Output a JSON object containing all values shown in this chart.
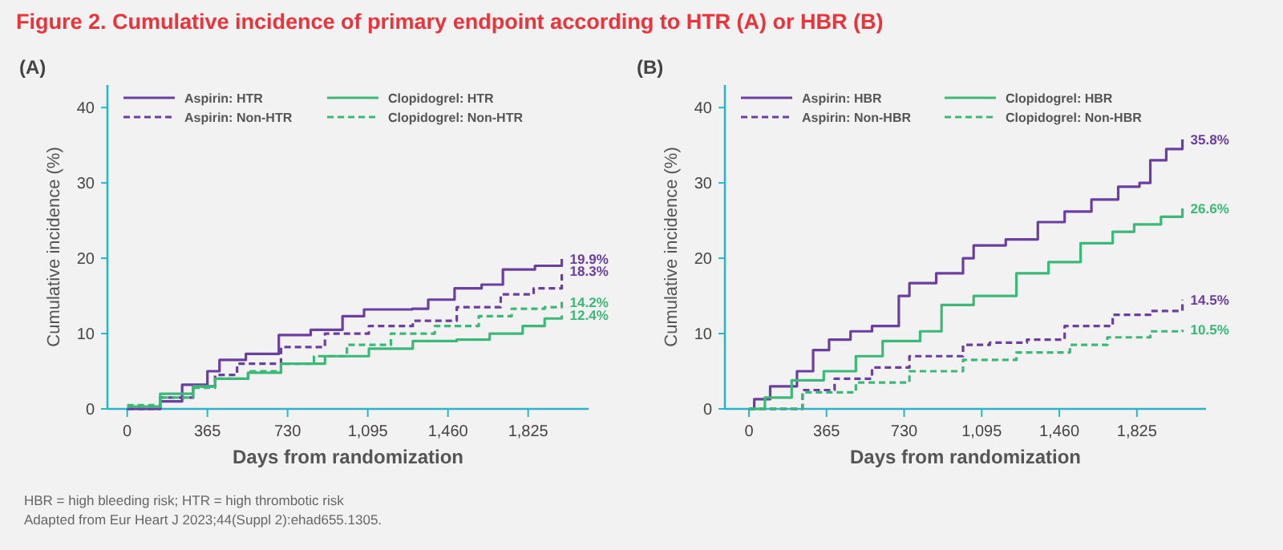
{
  "chart_data": [
    {
      "type": "step",
      "title": "Figure 2. Cumulative incidence of primary endpoint according to HTR (A) or HBR (B)",
      "subtitle": "(A)",
      "xlabel": "Days from randomization",
      "ylabel": "Cumulative incidence (%)",
      "xlim": [
        -90,
        2100
      ],
      "ylim": [
        0,
        43
      ],
      "xticks": [
        0,
        365,
        730,
        {
          "value": 1095,
          "label": "1,095"
        },
        {
          "value": 1460,
          "label": "1,460"
        },
        {
          "value": 1825,
          "label": "1,825"
        }
      ],
      "yticks": [
        0,
        10,
        20,
        30,
        40
      ],
      "grid": false,
      "legend": "top left",
      "series": [
        {
          "name": "Aspirin: HTR",
          "color": "#6b3fa0",
          "line_style": "solid",
          "x": [
            0,
            150,
            250,
            365,
            420,
            540,
            690,
            835,
            980,
            1078,
            1297,
            1370,
            1490,
            1613,
            1710,
            1856,
            1978
          ],
          "values": [
            0,
            1,
            3.2,
            5,
            6.5,
            7.3,
            9.8,
            10.5,
            12.3,
            13.2,
            13.3,
            14.5,
            16,
            16.5,
            18.5,
            19,
            19.9
          ],
          "value_labels": [
            null,
            null,
            null,
            null,
            null,
            null,
            null,
            null,
            null,
            null,
            null,
            null,
            null,
            null,
            null,
            null,
            "19.9%"
          ]
        },
        {
          "name": "Aspirin: Non-HTR",
          "color": "#6b3fa0",
          "line_style": "dashed",
          "x": [
            0,
            150,
            300,
            400,
            500,
            700,
            900,
            1100,
            1300,
            1500,
            1700,
            1850,
            1978
          ],
          "values": [
            0,
            1.5,
            3,
            4.5,
            6,
            8.2,
            10,
            11,
            11.7,
            13.5,
            15.2,
            16,
            18.3
          ],
          "value_labels": [
            null,
            null,
            null,
            null,
            null,
            null,
            null,
            null,
            null,
            null,
            null,
            null,
            "18.3%"
          ]
        },
        {
          "name": "Clopidogrel: HTR",
          "color": "#3cb878",
          "line_style": "solid",
          "x": [
            0,
            150,
            300,
            400,
            550,
            700,
            900,
            1100,
            1300,
            1500,
            1650,
            1800,
            1900,
            1978
          ],
          "values": [
            0.3,
            2,
            3,
            4,
            4.8,
            6,
            7,
            8,
            9,
            9.2,
            10,
            11,
            12,
            12.4
          ],
          "value_labels": [
            null,
            null,
            null,
            null,
            null,
            null,
            null,
            null,
            null,
            null,
            null,
            null,
            null,
            "12.4%"
          ]
        },
        {
          "name": "Clopidogrel: Non-HTR",
          "color": "#3cb878",
          "line_style": "dashed",
          "x": [
            0,
            150,
            300,
            400,
            550,
            700,
            850,
            1000,
            1200,
            1400,
            1600,
            1750,
            1900,
            1978
          ],
          "values": [
            0.5,
            1.5,
            2.8,
            4,
            5,
            6,
            7,
            8.5,
            10,
            11,
            12.3,
            13.3,
            13.5,
            14.2
          ],
          "value_labels": [
            null,
            null,
            null,
            null,
            null,
            null,
            null,
            null,
            null,
            null,
            null,
            null,
            null,
            "14.2%"
          ]
        }
      ],
      "annotations": [
        "HBR = high bleeding risk; HTR = high thrombotic risk",
        "Adapted from Eur Heart J 2023;44(Suppl 2):ehad655.1305."
      ]
    },
    {
      "type": "step",
      "subtitle": "(B)",
      "xlabel": "Days from randomization",
      "ylabel": "Cumulative incidence (%)",
      "xlim": [
        -113,
        2150
      ],
      "ylim": [
        0,
        43
      ],
      "xticks": [
        0,
        365,
        730,
        {
          "value": 1095,
          "label": "1,095"
        },
        {
          "value": 1460,
          "label": "1,460"
        },
        {
          "value": 1825,
          "label": "1,825"
        }
      ],
      "yticks": [
        0,
        10,
        20,
        30,
        40
      ],
      "grid": false,
      "legend": "top left",
      "series": [
        {
          "name": "Aspirin: HBR",
          "color": "#6b3fa0",
          "line_style": "solid",
          "x": [
            0,
            25,
            100,
            226,
            302,
            377,
            478,
            579,
            705,
            755,
            881,
            1007,
            1057,
            1208,
            1359,
            1485,
            1611,
            1737,
            1837,
            1888,
            1963,
            2039
          ],
          "values": [
            0,
            1.3,
            3,
            5,
            7.8,
            9.2,
            10.3,
            11,
            15,
            16.7,
            18,
            20,
            21.7,
            22.5,
            24.8,
            26.2,
            27.8,
            29.5,
            30,
            33,
            34.5,
            35.8
          ],
          "value_labels": [
            null,
            null,
            null,
            null,
            null,
            null,
            null,
            null,
            null,
            null,
            null,
            null,
            null,
            null,
            null,
            null,
            null,
            null,
            null,
            null,
            null,
            "35.8%"
          ]
        },
        {
          "name": "Aspirin: Non-HBR",
          "color": "#6b3fa0",
          "line_style": "dashed",
          "x": [
            0,
            252,
            403,
            579,
            755,
            1007,
            1133,
            1308,
            1485,
            1711,
            1888,
            2039
          ],
          "values": [
            0,
            2.5,
            4,
            5.5,
            7,
            8.5,
            8.8,
            9.2,
            11,
            12.5,
            13,
            14.5
          ],
          "value_labels": [
            null,
            null,
            null,
            null,
            null,
            null,
            null,
            null,
            null,
            null,
            null,
            "14.5%"
          ]
        },
        {
          "name": "Clopidogrel: HBR",
          "color": "#3cb878",
          "line_style": "solid",
          "x": [
            0,
            75,
            201,
            352,
            503,
            629,
            805,
            906,
            1057,
            1258,
            1409,
            1560,
            1711,
            1812,
            1938,
            2039
          ],
          "values": [
            0,
            1.5,
            3.8,
            5,
            7,
            9,
            10.3,
            13.8,
            15,
            18,
            19.5,
            22,
            23.5,
            24.5,
            25.5,
            26.6
          ],
          "value_labels": [
            null,
            null,
            null,
            null,
            null,
            null,
            null,
            null,
            null,
            null,
            null,
            null,
            null,
            null,
            null,
            "26.6%"
          ]
        },
        {
          "name": "Clopidogrel: Non-HBR",
          "color": "#3cb878",
          "line_style": "dashed",
          "x": [
            0,
            252,
            503,
            755,
            1007,
            1258,
            1510,
            1686,
            1888,
            2039
          ],
          "values": [
            0,
            2.2,
            3.5,
            5,
            6.5,
            7.5,
            8.5,
            9.5,
            10.3,
            10.5
          ],
          "value_labels": [
            null,
            null,
            null,
            null,
            null,
            null,
            null,
            null,
            null,
            "10.5%"
          ]
        }
      ]
    }
  ]
}
